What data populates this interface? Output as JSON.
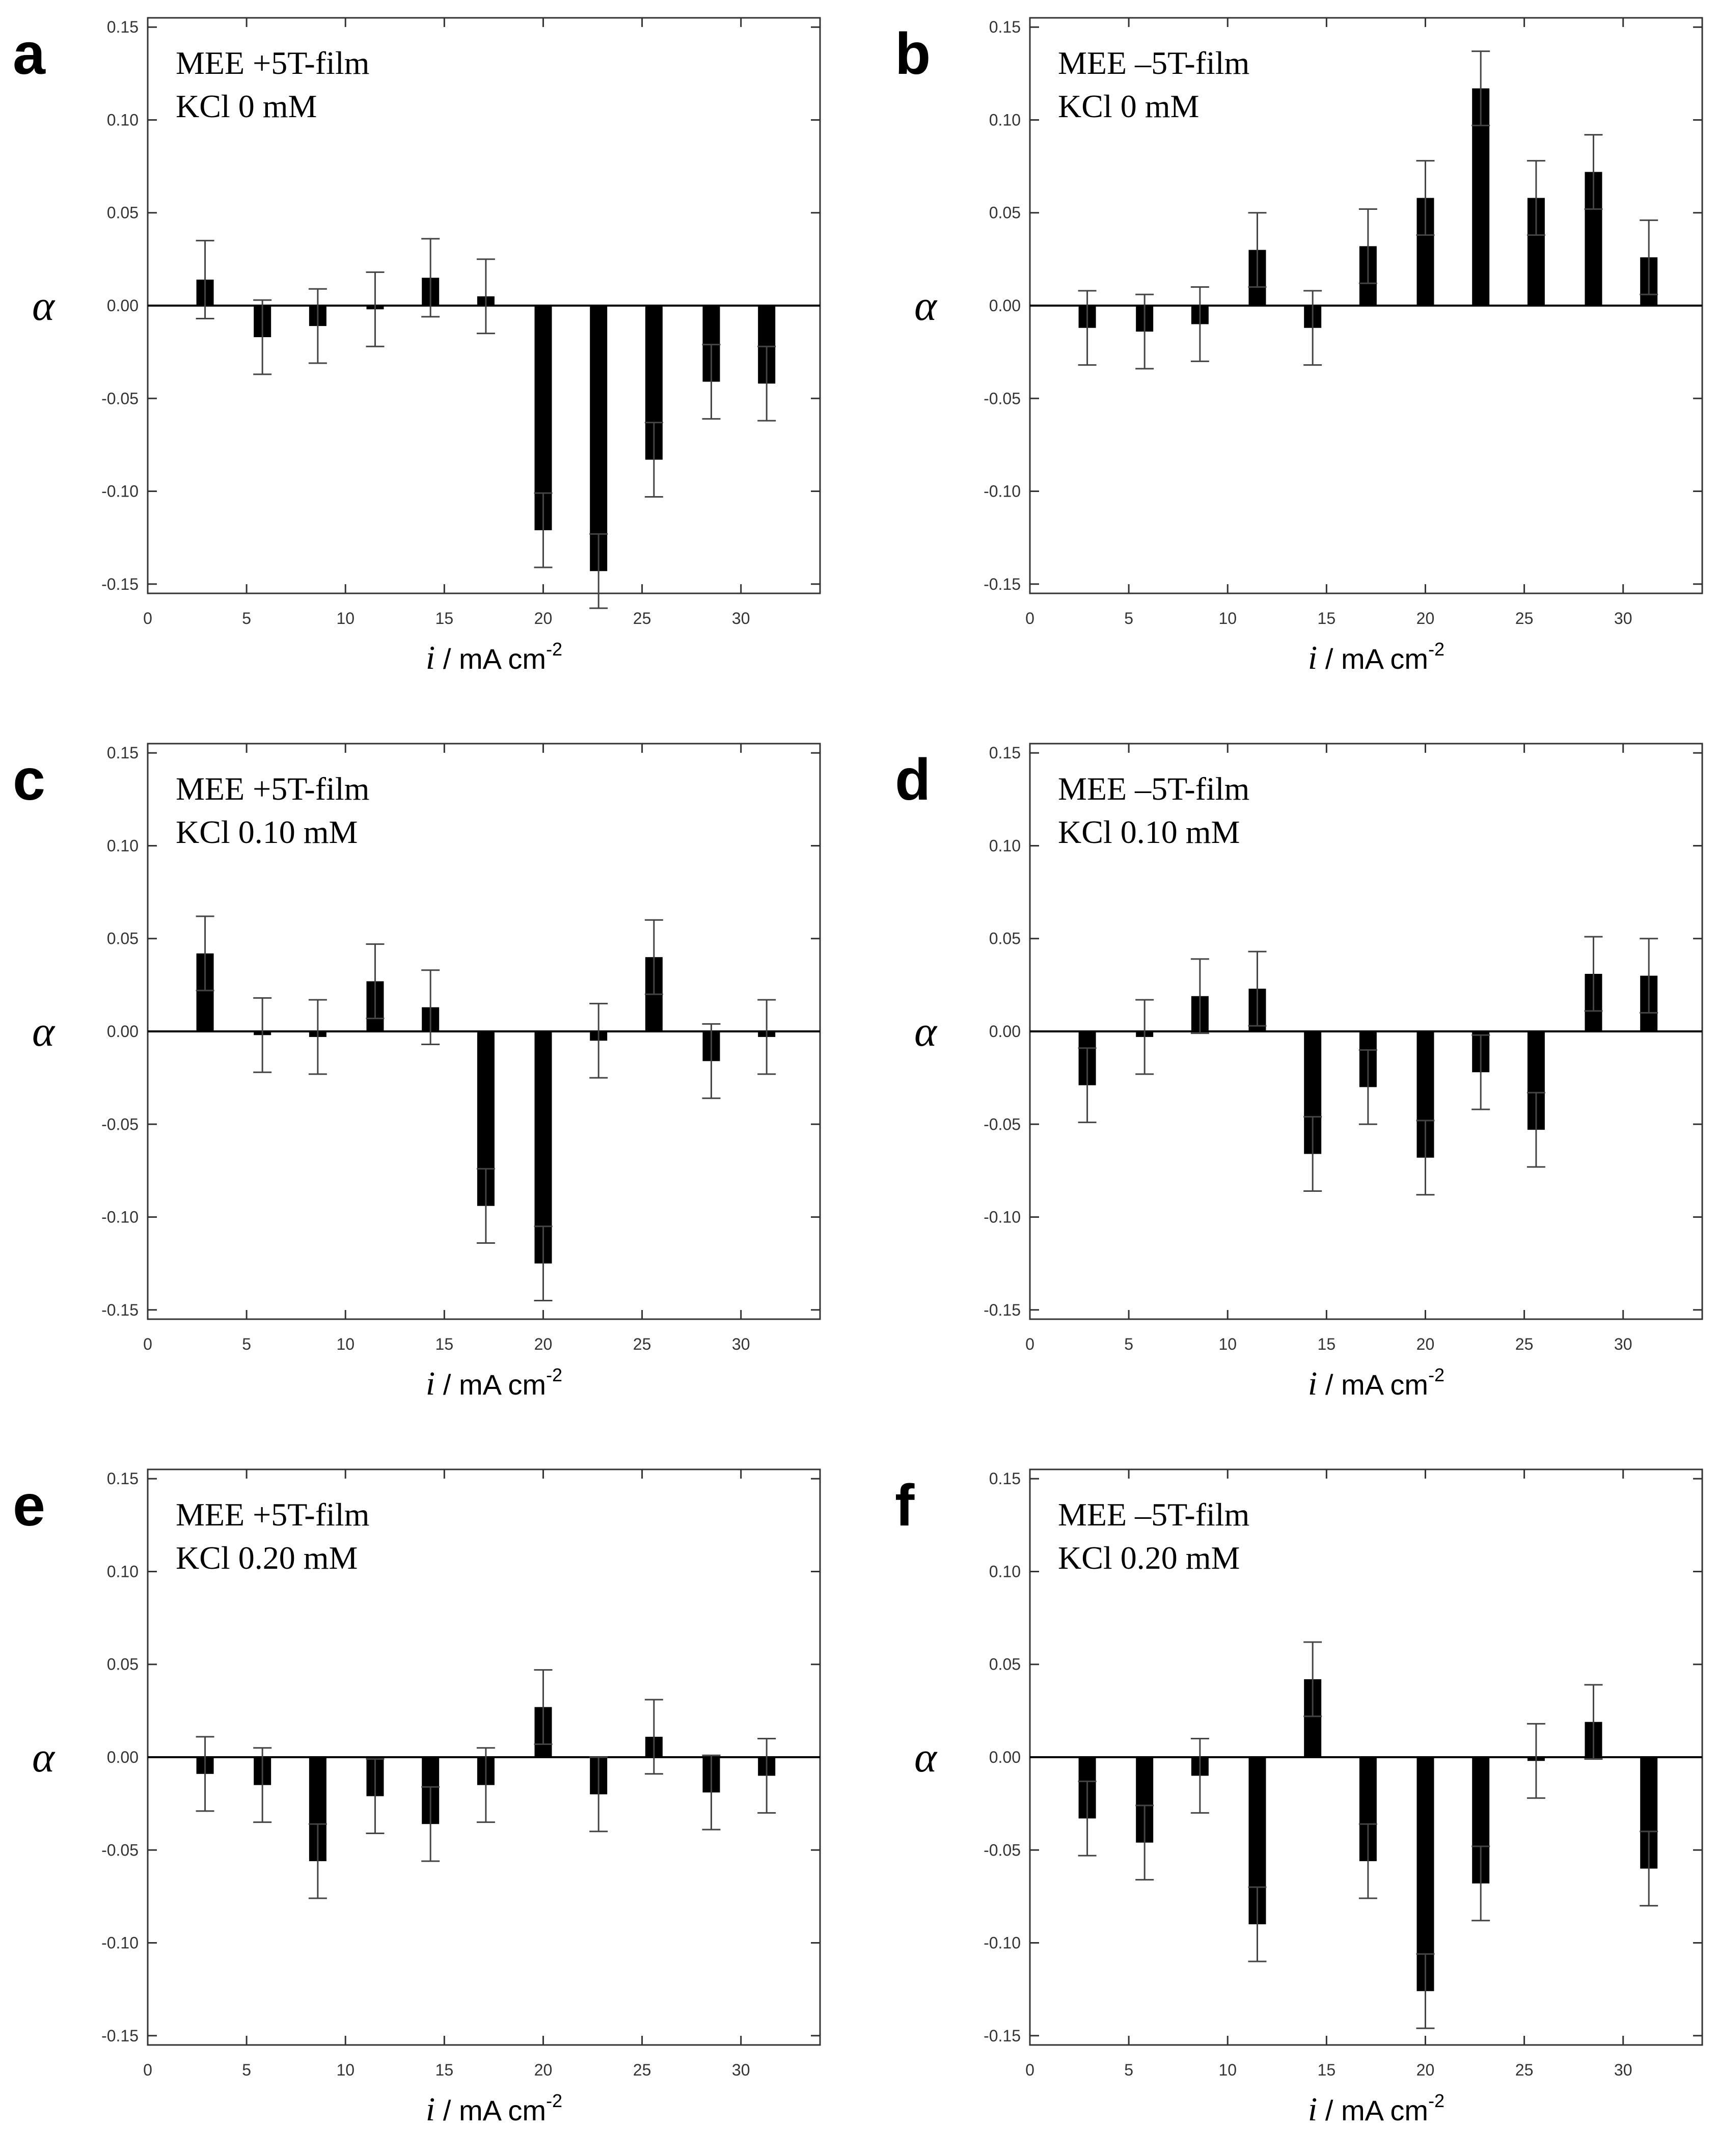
{
  "chart_data": [
    {
      "type": "bar",
      "panel": "a",
      "legend": [
        "MEE +5T-film",
        "KCl  0 mM"
      ],
      "x": [
        2.9,
        5.8,
        8.6,
        11.5,
        14.3,
        17.1,
        20,
        22.8,
        25.6,
        28.5,
        31.3
      ],
      "values": [
        0.014,
        -0.017,
        -0.011,
        -0.002,
        0.015,
        0.005,
        -0.121,
        -0.143,
        -0.083,
        -0.041,
        -0.042
      ],
      "errors": [
        0.021,
        0.02,
        0.02,
        0.02,
        0.021,
        0.02,
        0.02,
        0.02,
        0.02,
        0.02,
        0.02
      ],
      "xlabel_italic": "i",
      "xlabel": " / mA cm",
      "xlabel_sup": "-2",
      "ylabel": "α",
      "xlim": [
        0,
        34
      ],
      "ylim": [
        -0.155,
        0.155
      ],
      "xticks": [
        "0",
        "5",
        "10",
        "15",
        "20",
        "25",
        "30"
      ],
      "yticks": [
        "0.15",
        "0.10",
        "0.05",
        "0.00",
        "-0.05",
        "-0.10",
        "-0.15"
      ]
    },
    {
      "type": "bar",
      "panel": "b",
      "legend": [
        "MEE –5T-film",
        "KCl  0 mM"
      ],
      "x": [
        2.9,
        5.8,
        8.6,
        11.5,
        14.3,
        17.1,
        20,
        22.8,
        25.6,
        28.5,
        31.3
      ],
      "values": [
        -0.012,
        -0.014,
        -0.01,
        0.03,
        -0.012,
        0.032,
        0.058,
        0.117,
        0.058,
        0.072,
        0.026
      ],
      "errors": [
        0.02,
        0.02,
        0.02,
        0.02,
        0.02,
        0.02,
        0.02,
        0.02,
        0.02,
        0.02,
        0.02
      ],
      "xlabel_italic": "i",
      "xlabel": " / mA cm",
      "xlabel_sup": "-2",
      "ylabel": "α",
      "xlim": [
        0,
        34
      ],
      "ylim": [
        -0.155,
        0.155
      ],
      "xticks": [
        "0",
        "5",
        "10",
        "15",
        "20",
        "25",
        "30"
      ],
      "yticks": [
        "0.15",
        "0.10",
        "0.05",
        "0.00",
        "-0.05",
        "-0.10",
        "-0.15"
      ]
    },
    {
      "type": "bar",
      "panel": "c",
      "legend": [
        "MEE +5T-film",
        "KCl  0.10 mM"
      ],
      "x": [
        2.9,
        5.8,
        8.6,
        11.5,
        14.3,
        17.1,
        20,
        22.8,
        25.6,
        28.5,
        31.3
      ],
      "values": [
        0.042,
        -0.002,
        -0.003,
        0.027,
        0.013,
        -0.094,
        -0.125,
        -0.005,
        0.04,
        -0.016,
        -0.003
      ],
      "errors": [
        0.02,
        0.02,
        0.02,
        0.02,
        0.02,
        0.02,
        0.02,
        0.02,
        0.02,
        0.02,
        0.02
      ],
      "xlabel_italic": "i",
      "xlabel": " / mA cm",
      "xlabel_sup": "-2",
      "ylabel": "α",
      "xlim": [
        0,
        34
      ],
      "ylim": [
        -0.155,
        0.155
      ],
      "xticks": [
        "0",
        "5",
        "10",
        "15",
        "20",
        "25",
        "30"
      ],
      "yticks": [
        "0.15",
        "0.10",
        "0.05",
        "0.00",
        "-0.05",
        "-0.10",
        "-0.15"
      ]
    },
    {
      "type": "bar",
      "panel": "d",
      "legend": [
        "MEE –5T-film",
        "KCl  0.10 mM"
      ],
      "x": [
        2.9,
        5.8,
        8.6,
        11.5,
        14.3,
        17.1,
        20,
        22.8,
        25.6,
        28.5,
        31.3
      ],
      "values": [
        -0.029,
        -0.003,
        0.019,
        0.023,
        -0.066,
        -0.03,
        -0.068,
        -0.022,
        -0.053,
        0.031,
        0.03
      ],
      "errors": [
        0.02,
        0.02,
        0.02,
        0.02,
        0.02,
        0.02,
        0.02,
        0.02,
        0.02,
        0.02,
        0.02
      ],
      "xlabel_italic": "i",
      "xlabel": " / mA cm",
      "xlabel_sup": "-2",
      "ylabel": "α",
      "xlim": [
        0,
        34
      ],
      "ylim": [
        -0.155,
        0.155
      ],
      "xticks": [
        "0",
        "5",
        "10",
        "15",
        "20",
        "25",
        "30"
      ],
      "yticks": [
        "0.15",
        "0.10",
        "0.05",
        "0.00",
        "-0.05",
        "-0.10",
        "-0.15"
      ]
    },
    {
      "type": "bar",
      "panel": "e",
      "legend": [
        "MEE +5T-film",
        "KCl  0.20 mM"
      ],
      "x": [
        2.9,
        5.8,
        8.6,
        11.5,
        14.3,
        17.1,
        20,
        22.8,
        25.6,
        28.5,
        31.3
      ],
      "values": [
        -0.009,
        -0.015,
        -0.056,
        -0.021,
        -0.036,
        -0.015,
        0.027,
        -0.02,
        0.011,
        -0.019,
        -0.01
      ],
      "errors": [
        0.02,
        0.02,
        0.02,
        0.02,
        0.02,
        0.02,
        0.02,
        0.02,
        0.02,
        0.02,
        0.02
      ],
      "xlabel_italic": "i",
      "xlabel": " / mA cm",
      "xlabel_sup": "-2",
      "ylabel": "α",
      "xlim": [
        0,
        34
      ],
      "ylim": [
        -0.155,
        0.155
      ],
      "xticks": [
        "0",
        "5",
        "10",
        "15",
        "20",
        "25",
        "30"
      ],
      "yticks": [
        "0.15",
        "0.10",
        "0.05",
        "0.00",
        "-0.05",
        "-0.10",
        "-0.15"
      ]
    },
    {
      "type": "bar",
      "panel": "f",
      "legend": [
        "MEE –5T-film",
        "KCl  0.20 mM"
      ],
      "x": [
        2.9,
        5.8,
        8.6,
        11.5,
        14.3,
        17.1,
        20,
        22.8,
        25.6,
        28.5,
        31.3
      ],
      "values": [
        -0.033,
        -0.046,
        -0.01,
        -0.09,
        0.042,
        -0.056,
        -0.126,
        -0.068,
        -0.002,
        0.019,
        -0.06
      ],
      "errors": [
        0.02,
        0.02,
        0.02,
        0.02,
        0.02,
        0.02,
        0.02,
        0.02,
        0.02,
        0.02,
        0.02
      ],
      "xlabel_italic": "i",
      "xlabel": " / mA cm",
      "xlabel_sup": "-2",
      "ylabel": "α",
      "xlim": [
        0,
        34
      ],
      "ylim": [
        -0.155,
        0.155
      ],
      "xticks": [
        "0",
        "5",
        "10",
        "15",
        "20",
        "25",
        "30"
      ],
      "yticks": [
        "0.15",
        "0.10",
        "0.05",
        "0.00",
        "-0.05",
        "-0.10",
        "-0.15"
      ]
    }
  ],
  "colors": {
    "bar": "#000000",
    "axis": "#333333",
    "zero_line": "#000000"
  }
}
